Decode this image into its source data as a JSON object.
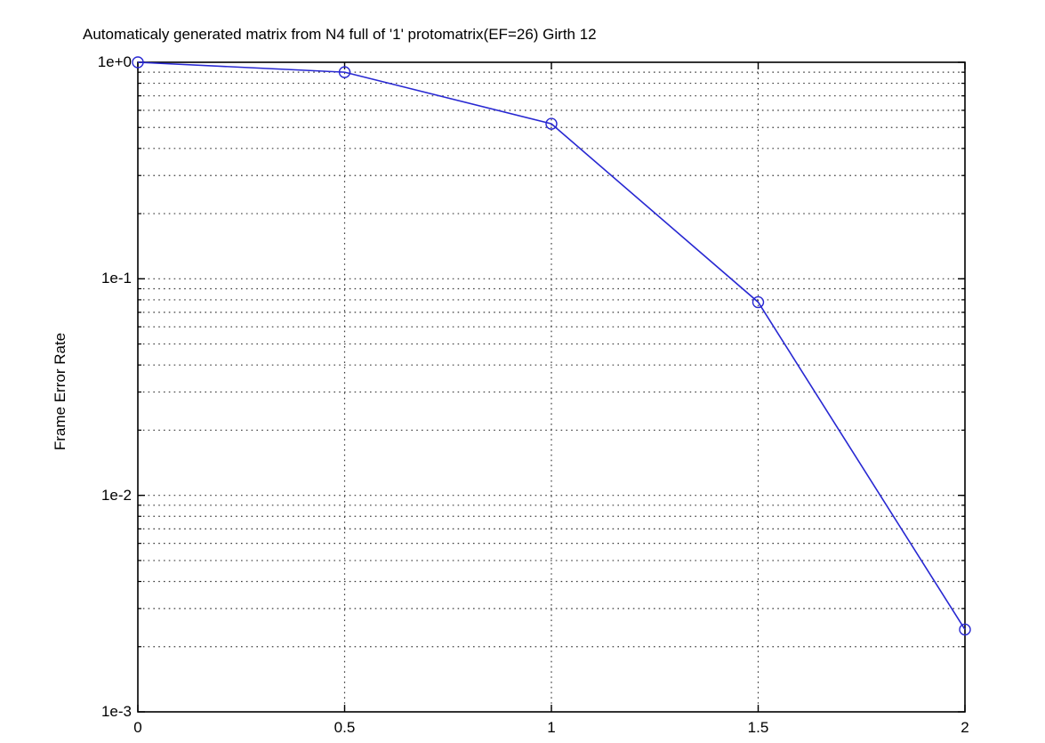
{
  "title": "Automaticaly generated matrix from N4 full of '1' protomatrix(EF=26) Girth 12",
  "colors": {
    "line": "#2828d2",
    "marker": "#2828d2",
    "grid_dots": "#3c3c3c",
    "axis": "#000000",
    "background": "#ffffff",
    "text": "#000000"
  },
  "chart_data": {
    "type": "line",
    "title": "Automaticaly generated matrix from N4 full of '1' protomatrix(EF=26) Girth 12",
    "xlabel": "",
    "ylabel": "Frame Error Rate",
    "x": [
      0,
      0.5,
      1,
      1.5,
      2
    ],
    "series": [
      {
        "name": "Frame Error Rate",
        "x": [
          0,
          0.5,
          1,
          1.5,
          2
        ],
        "y": [
          1.0,
          0.9,
          0.52,
          0.078,
          0.0024
        ],
        "marker": "open-circle",
        "line_style": "solid"
      }
    ],
    "x_tick_values": [
      0,
      0.5,
      1,
      1.5,
      2
    ],
    "x_tick_labels": [
      "0",
      "0.5",
      "1",
      "1.5",
      "2"
    ],
    "y_tick_values": [
      1,
      0.1,
      0.01,
      0.001
    ],
    "y_tick_labels": [
      "1e+0",
      "1e-1",
      "1e-2",
      "1e-3"
    ],
    "y_scale": "log",
    "xlim": [
      0,
      2
    ],
    "ylim": [
      0.001,
      1.0
    ],
    "grid": {
      "horizontal": "major+minor dotted",
      "vertical": "major dotted"
    },
    "legend": "none"
  }
}
